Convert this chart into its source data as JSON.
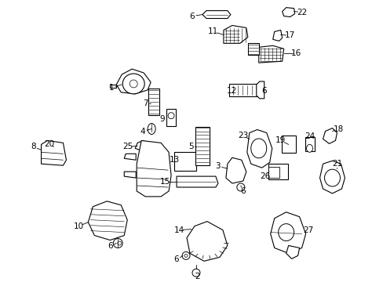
{
  "background_color": "#ffffff",
  "figure_width": 4.89,
  "figure_height": 3.6,
  "dpi": 100,
  "line_color": "#000000",
  "text_color": "#000000",
  "fontsize": 7.5
}
